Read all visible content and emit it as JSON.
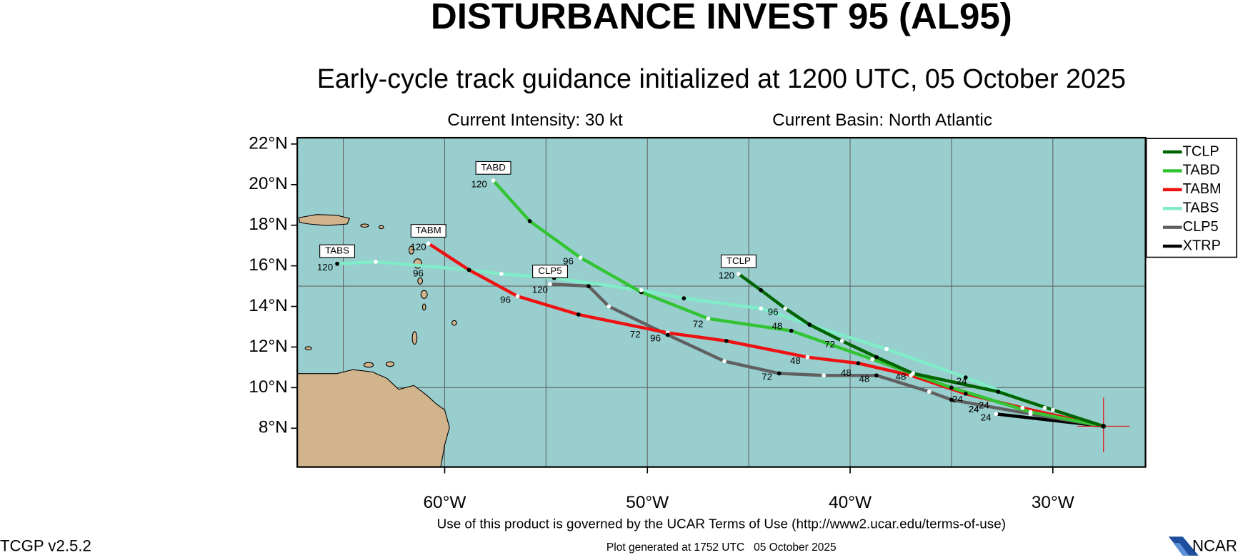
{
  "chart_data": {
    "type": "track-map",
    "title": "DISTURBANCE INVEST 95 (AL95)",
    "subtitle": "Early-cycle track guidance initialized at 1200 UTC, 05 October 2025",
    "intensity": "Current Intensity: 30 kt",
    "basin": "Current Basin: North Atlantic",
    "xlim": [
      -67.27,
      -25.43
    ],
    "ylim": [
      6.09,
      22.31
    ],
    "xticks": [
      {
        "value": -60,
        "label": "60°W"
      },
      {
        "value": -50,
        "label": "50°W"
      },
      {
        "value": -40,
        "label": "40°W"
      },
      {
        "value": -30,
        "label": "30°W"
      }
    ],
    "yticks": [
      {
        "value": 8,
        "label": "8°N"
      },
      {
        "value": 10,
        "label": "10°N"
      },
      {
        "value": 12,
        "label": "12°N"
      },
      {
        "value": 14,
        "label": "14°N"
      },
      {
        "value": 16,
        "label": "16°N"
      },
      {
        "value": 18,
        "label": "18°N"
      },
      {
        "value": 20,
        "label": "20°N"
      },
      {
        "value": 22,
        "label": "22°N"
      }
    ],
    "grid_lon": [
      -65,
      -60,
      -55,
      -50,
      -45,
      -40,
      -35,
      -30
    ],
    "grid_lat": [
      10,
      15
    ],
    "current_position": [
      -27.5,
      8.1
    ],
    "series": [
      {
        "name": "TCLP",
        "color": "#006400",
        "lon": [
          -27.5,
          -30.0,
          -32.7,
          -36.9,
          -38.7,
          -40.4,
          -42.0,
          -43.2,
          -44.4,
          -45.5
        ],
        "lat": [
          8.1,
          8.9,
          9.8,
          10.7,
          11.5,
          12.3,
          13.1,
          13.9,
          14.8,
          15.6
        ],
        "hour_labels": [
          {
            "text": "120",
            "lon": -46.1,
            "lat": 15.5
          },
          {
            "text": "96",
            "lon": -43.8,
            "lat": 13.7
          },
          {
            "text": "72",
            "lon": -41.0,
            "lat": 12.1
          },
          {
            "text": "48",
            "lon": -43.6,
            "lat": 13.0
          },
          {
            "text": "24",
            "lon": -34.5,
            "lat": 10.3
          }
        ]
      },
      {
        "name": "TABD",
        "color": "#33c433",
        "lon": [
          -27.5,
          -31.1,
          -35.0,
          -38.9,
          -42.9,
          -47.0,
          -50.3,
          -53.3,
          -55.8,
          -57.6
        ],
        "lat": [
          8.1,
          8.8,
          10.0,
          11.4,
          12.8,
          13.4,
          14.7,
          16.4,
          18.2,
          20.2
        ],
        "hour_labels": [
          {
            "text": "120",
            "lon": -58.3,
            "lat": 20.0
          },
          {
            "text": "96",
            "lon": -53.9,
            "lat": 16.2
          },
          {
            "text": "72",
            "lon": -47.5,
            "lat": 13.1
          },
          {
            "text": "48",
            "lon": -39.3,
            "lat": 10.4
          },
          {
            "text": "24",
            "lon": -34.7,
            "lat": 9.4
          }
        ]
      },
      {
        "name": "TABM",
        "color": "#ee1111",
        "lon": [
          -27.5,
          -31.5,
          -34.3,
          -37.0,
          -39.6,
          -42.1,
          -46.1,
          -49.0,
          -53.4,
          -56.4,
          -58.8,
          -60.8
        ],
        "lat": [
          8.1,
          9.0,
          9.7,
          10.6,
          11.2,
          11.5,
          12.3,
          12.7,
          13.6,
          14.5,
          15.8,
          17.1
        ],
        "hour_labels": [
          {
            "text": "120",
            "lon": -61.3,
            "lat": 16.9
          },
          {
            "text": "96",
            "lon": -57.0,
            "lat": 14.3
          },
          {
            "text": "72",
            "lon": -50.6,
            "lat": 12.6
          },
          {
            "text": "48",
            "lon": -42.7,
            "lat": 11.3
          },
          {
            "text": "24",
            "lon": -33.9,
            "lat": 8.9
          }
        ]
      },
      {
        "name": "TABS",
        "color": "#80ecc8",
        "lon": [
          -27.5,
          -30.4,
          -34.3,
          -38.2,
          -42.0,
          -44.4,
          -48.2,
          -50.3,
          -54.6,
          -57.2,
          -58.8,
          -63.4,
          -65.3
        ],
        "lat": [
          8.1,
          9.0,
          10.5,
          11.9,
          13.1,
          13.9,
          14.4,
          14.8,
          15.4,
          15.6,
          15.8,
          16.2,
          16.1
        ],
        "hour_labels": [
          {
            "text": "120",
            "lon": -65.9,
            "lat": 15.9
          },
          {
            "text": "96",
            "lon": -61.3,
            "lat": 15.6
          },
          {
            "text": "48",
            "lon": -37.5,
            "lat": 10.5
          },
          {
            "text": "24",
            "lon": -33.4,
            "lat": 9.1
          }
        ]
      },
      {
        "name": "CLP5",
        "color": "#606060",
        "lon": [
          -27.5,
          -31.1,
          -35.0,
          -36.1,
          -38.7,
          -41.3,
          -43.5,
          -46.2,
          -49.0,
          -51.9,
          -52.9,
          -54.8
        ],
        "lat": [
          8.1,
          8.7,
          9.4,
          9.8,
          10.6,
          10.6,
          10.7,
          11.3,
          12.6,
          14.0,
          15.0,
          15.1
        ],
        "hour_labels": [
          {
            "text": "120",
            "lon": -55.3,
            "lat": 14.8
          },
          {
            "text": "96",
            "lon": -49.6,
            "lat": 12.4
          },
          {
            "text": "72",
            "lon": -44.1,
            "lat": 10.5
          },
          {
            "text": "48",
            "lon": -40.2,
            "lat": 10.7
          },
          {
            "text": "24",
            "lon": -33.9,
            "lat": 8.9
          }
        ]
      },
      {
        "name": "XTRP",
        "color": "#000000",
        "lon": [
          -27.5,
          -32.8
        ],
        "lat": [
          8.1,
          8.7
        ],
        "hour_labels": [
          {
            "text": "24",
            "lon": -33.3,
            "lat": 8.5
          }
        ]
      }
    ],
    "footer_terms": "Use of this product is governed by the UCAR Terms of Use (http://www2.ucar.edu/terms-of-use)",
    "footer_generated": "Plot generated at 1752 UTC   05 October 2025",
    "version": "TCGP v2.5.2",
    "logo": "NCAR"
  }
}
